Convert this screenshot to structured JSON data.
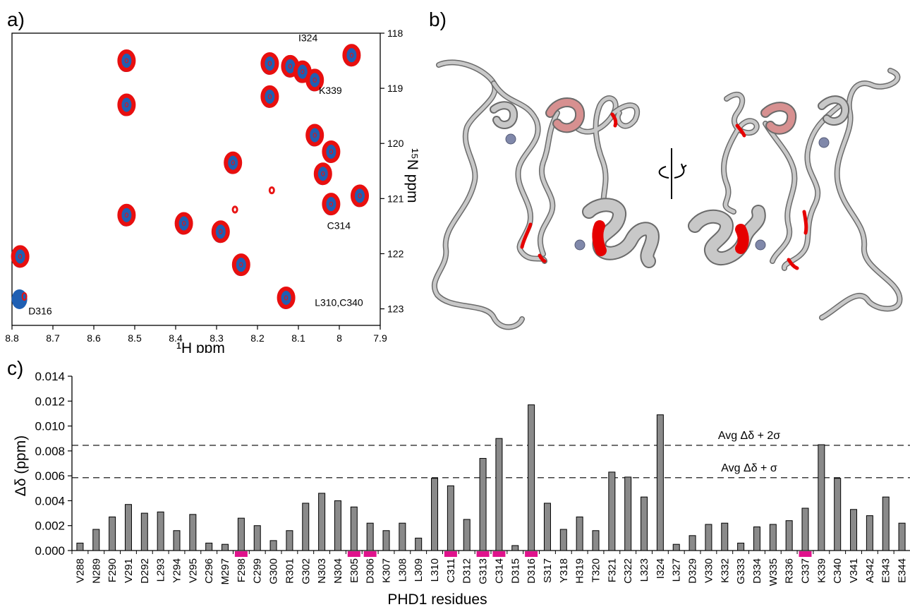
{
  "panels": {
    "a": "a)",
    "b": "b)",
    "c": "c)"
  },
  "nmr": {
    "xlabel": "¹H ppm",
    "ylabel": "¹⁵N ppm",
    "x_ticks": [
      "8.8",
      "8.7",
      "8.6",
      "8.5",
      "8.4",
      "8.3",
      "8.2",
      "8.1",
      "8",
      "7.9"
    ],
    "y_ticks": [
      "118",
      "119",
      "120",
      "121",
      "122",
      "123"
    ],
    "xlim": [
      8.8,
      7.9
    ],
    "ylim": [
      118,
      123.3
    ],
    "colors": {
      "reference": "#1f5fb3",
      "bound": "#e80f0f"
    },
    "peaks": [
      {
        "h": 8.52,
        "n": 118.5
      },
      {
        "h": 8.52,
        "n": 119.3
      },
      {
        "h": 8.52,
        "n": 121.3
      },
      {
        "h": 8.78,
        "n": 122.05
      },
      {
        "h": 8.78,
        "n": 122.8,
        "ref_only": true
      },
      {
        "h": 8.38,
        "n": 121.45
      },
      {
        "h": 8.29,
        "n": 121.6
      },
      {
        "h": 8.26,
        "n": 120.35
      },
      {
        "h": 8.24,
        "n": 122.2
      },
      {
        "h": 8.17,
        "n": 118.55
      },
      {
        "h": 8.17,
        "n": 119.15
      },
      {
        "h": 8.12,
        "n": 118.6
      },
      {
        "h": 8.09,
        "n": 118.7
      },
      {
        "h": 8.06,
        "n": 118.85
      },
      {
        "h": 8.06,
        "n": 119.85
      },
      {
        "h": 8.02,
        "n": 120.15
      },
      {
        "h": 8.04,
        "n": 120.55
      },
      {
        "h": 8.02,
        "n": 121.1
      },
      {
        "h": 7.95,
        "n": 120.95
      },
      {
        "h": 7.97,
        "n": 118.4
      },
      {
        "h": 8.13,
        "n": 122.8
      },
      {
        "h": 8.165,
        "n": 120.85,
        "small": true
      },
      {
        "h": 8.255,
        "n": 121.2,
        "small": true
      }
    ],
    "labels": [
      {
        "text": "I324",
        "h": 8.1,
        "n": 118.15
      },
      {
        "text": "K339",
        "h": 8.05,
        "n": 119.1
      },
      {
        "text": "C314",
        "h": 8.03,
        "n": 121.55
      },
      {
        "text": "D316",
        "h": 8.76,
        "n": 123.1
      },
      {
        "text": "L310,C340",
        "h": 8.06,
        "n": 122.95
      }
    ]
  },
  "structure": {
    "colors": {
      "ribbon": "#c8c8c8",
      "highlight": "#e60000",
      "ion": "#8088aa"
    }
  },
  "chart_data": {
    "type": "bar",
    "xlabel": "PHD1 residues",
    "ylabel": "Δδ (ppm)",
    "ylim": [
      0,
      0.014
    ],
    "y_ticks": [
      "0.000",
      "0.002",
      "0.004",
      "0.006",
      "0.008",
      "0.010",
      "0.012",
      "0.014"
    ],
    "categories": [
      "V288",
      "N289",
      "F290",
      "V291",
      "D292",
      "L293",
      "Y294",
      "V295",
      "C296",
      "M297",
      "F298",
      "C299",
      "G300",
      "R301",
      "G302",
      "N303",
      "N304",
      "E305",
      "D306",
      "K307",
      "L308",
      "L309",
      "L310",
      "C311",
      "D312",
      "G313",
      "C314",
      "D315",
      "D316",
      "S317",
      "Y318",
      "H319",
      "T320",
      "F321",
      "C322",
      "L323",
      "I324",
      "L327",
      "D329",
      "V330",
      "K332",
      "G333",
      "D334",
      "W335",
      "R336",
      "C337",
      "K339",
      "C340",
      "V341",
      "A342",
      "E343",
      "E344"
    ],
    "values": [
      0.0006,
      0.0017,
      0.0027,
      0.0037,
      0.003,
      0.0031,
      0.0016,
      0.0029,
      0.0006,
      0.0005,
      0.0026,
      0.002,
      0.0008,
      0.0016,
      0.0038,
      0.0046,
      0.004,
      0.0035,
      0.0022,
      0.0016,
      0.0022,
      0.001,
      0.0058,
      0.0052,
      0.0025,
      0.0074,
      0.009,
      0.0004,
      0.0117,
      0.0038,
      0.0017,
      0.0027,
      0.0016,
      0.0063,
      0.0059,
      0.0043,
      0.0109,
      0.0005,
      0.0012,
      0.0021,
      0.0022,
      0.0006,
      0.0019,
      0.0021,
      0.0024,
      0.0034,
      0.0085,
      0.0058,
      0.0033,
      0.0028,
      0.0043,
      0.0022
    ],
    "marked_residues": [
      "F298",
      "E305",
      "D306",
      "C311",
      "G313",
      "C314",
      "D316",
      "C337"
    ],
    "thresholds": [
      {
        "label": "Avg Δδ + 2σ",
        "value": 0.00845
      },
      {
        "label": "Avg Δδ + σ",
        "value": 0.00585
      }
    ],
    "bar_color": "#8a8a8a",
    "marker_color": "#e0138c"
  }
}
